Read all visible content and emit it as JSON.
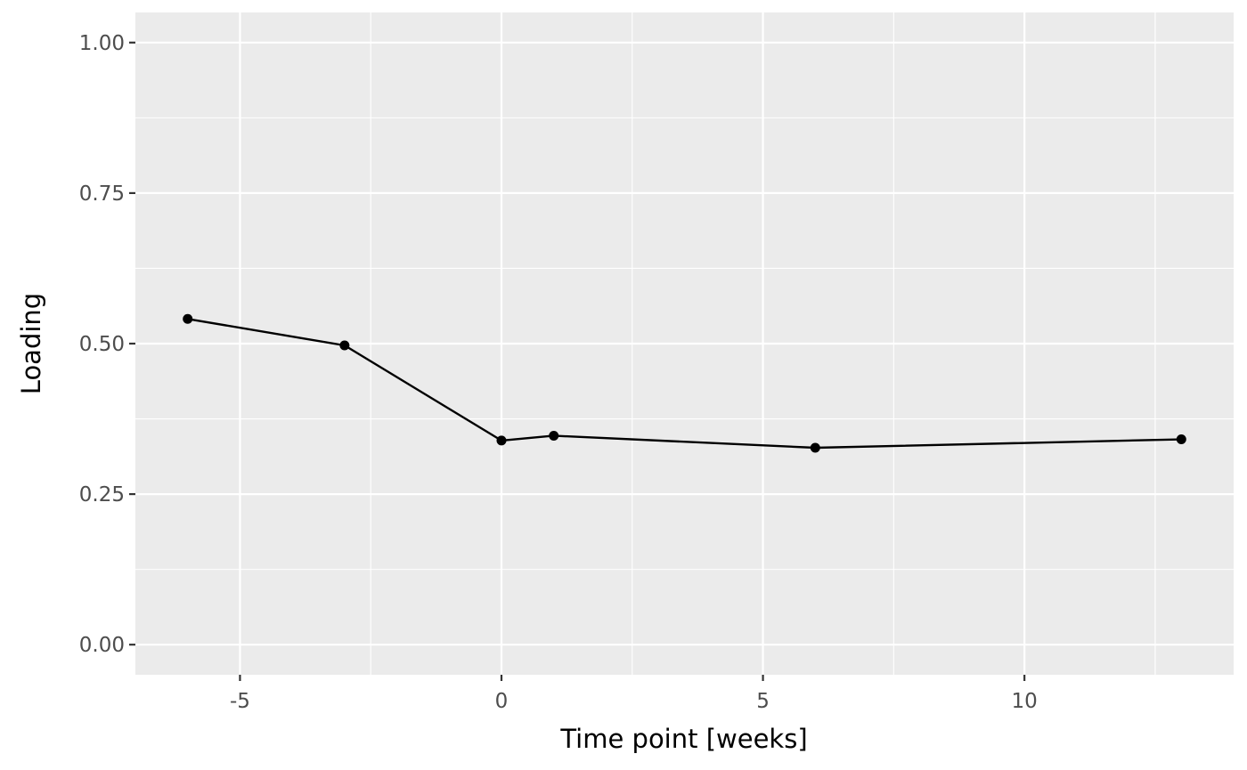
{
  "chart_data": {
    "type": "line",
    "title": "",
    "xlabel": "Time point [weeks]",
    "ylabel": "Loading",
    "xlim": [
      -7,
      14
    ],
    "ylim": [
      -0.05,
      1.05
    ],
    "x_ticks": [
      -5,
      0,
      5,
      10
    ],
    "x_tick_labels": [
      "-5",
      "0",
      "5",
      "10"
    ],
    "x_minor_ticks": [
      -2.5,
      2.5,
      7.5,
      12.5
    ],
    "y_ticks": [
      0,
      0.25,
      0.5,
      0.75,
      1
    ],
    "y_tick_labels": [
      "0.00",
      "0.25",
      "0.50",
      "0.75",
      "1.00"
    ],
    "y_minor_ticks": [
      0.125,
      0.375,
      0.625,
      0.875
    ],
    "grid": true,
    "legend": "none",
    "series": [
      {
        "x": [
          -6,
          -3,
          0,
          1,
          6,
          13
        ],
        "y": [
          0.541,
          0.497,
          0.339,
          0.347,
          0.327,
          0.341
        ]
      }
    ],
    "colors": {
      "panel_background": "#ebebeb",
      "grid": "#ffffff",
      "line": "#000000",
      "point": "#000000",
      "tick_label": "#4d4d4d",
      "tick_mark": "#333333"
    }
  }
}
